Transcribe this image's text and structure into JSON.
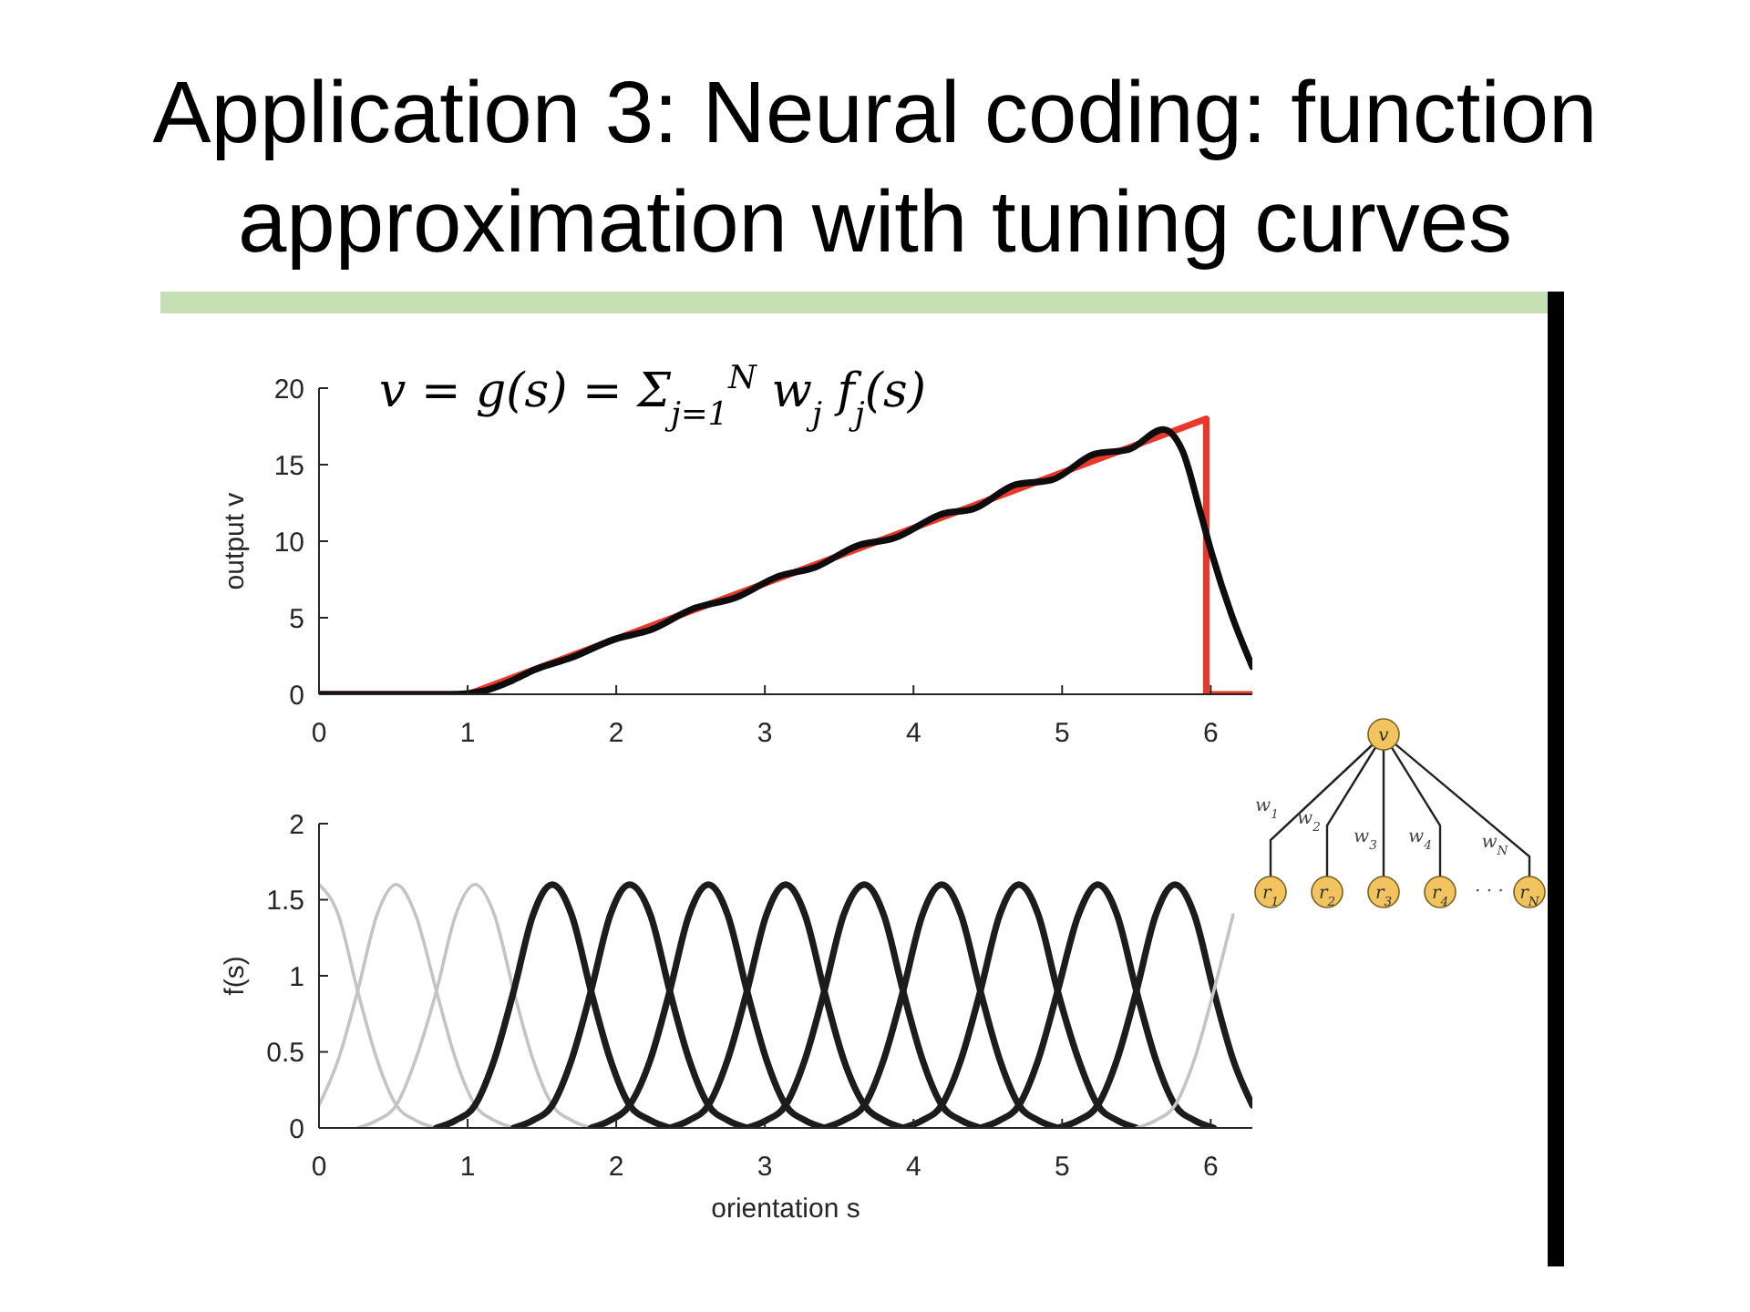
{
  "chart_data": [
    {
      "type": "line",
      "title": "Application 3: Neural coding: function approximation with tuning curves",
      "ylabel": "output v",
      "annotations": [
        "v = g(s) = Σ$_{j=1}$$^{N}$ w$_{j}$ f$_{j}$(s)"
      ],
      "xlim": [
        0,
        6.28
      ],
      "ylim": [
        0,
        20
      ],
      "xticks": [
        0,
        1,
        2,
        3,
        4,
        5,
        6
      ],
      "yticks": [
        0,
        5,
        10,
        15,
        20
      ],
      "series": [
        {
          "color": "#e8392a",
          "x": [
            0,
            1,
            5.97,
            5.97,
            6.28
          ],
          "values": [
            0,
            0,
            18,
            0,
            0
          ]
        },
        {
          "color": "#0d0d0d",
          "x": [
            0,
            0.5,
            0.9,
            1.1,
            1.3,
            1.45,
            1.7,
            1.99,
            2.23,
            2.52,
            2.8,
            3.09,
            3.34,
            3.62,
            3.87,
            4.2,
            4.4,
            4.69,
            4.93,
            5.22,
            5.45,
            5.68,
            5.81,
            5.93,
            6.01,
            6.14,
            6.28
          ],
          "values": [
            0,
            0,
            0,
            0.2,
            0.9,
            1.6,
            2.4,
            3.6,
            4.2,
            5.6,
            6.3,
            7.7,
            8.3,
            9.7,
            10.2,
            11.8,
            12.1,
            13.7,
            14.0,
            15.7,
            16.0,
            17.3,
            15.9,
            11.9,
            9.1,
            5.2,
            1.8
          ]
        }
      ]
    },
    {
      "type": "line",
      "xlabel": "orientation s",
      "ylabel": "f(s)",
      "annotations": [
        "v",
        "w$_{1}$",
        "w$_{2}$",
        "w$_{3}$",
        "w$_{4}$",
        "w$_{N}$",
        "r$_{1}$",
        "r$_{2}$",
        "r$_{3}$",
        "r$_{4}$",
        "· · ·",
        "r$_{N}$"
      ],
      "xlim": [
        0,
        6.28
      ],
      "ylim": [
        0,
        2
      ],
      "xticks": [
        0,
        1,
        2,
        3,
        4,
        5,
        6
      ],
      "yticks": [
        0,
        0.5,
        1,
        1.5,
        2
      ],
      "series": [
        {
          "color": "#c4c4c4",
          "x": [
            0,
            0.13,
            0.26,
            0.39,
            0.52,
            0.65,
            0.79
          ],
          "values": [
            1.6,
            1.4,
            0.9,
            0.45,
            0.15,
            0.05,
            0
          ]
        },
        {
          "color": "#c4c4c4",
          "x": [
            0,
            0.13,
            0.26,
            0.39,
            0.52,
            0.65,
            0.79,
            0.92,
            1.05,
            1.18,
            1.31
          ],
          "values": [
            0.15,
            0.45,
            0.9,
            1.4,
            1.6,
            1.4,
            0.9,
            0.45,
            0.15,
            0.05,
            0
          ]
        },
        {
          "color": "#c4c4c4",
          "x": [
            0.26,
            0.39,
            0.52,
            0.65,
            0.79,
            0.92,
            1.05,
            1.18,
            1.31,
            1.44,
            1.57,
            1.7,
            1.83
          ],
          "values": [
            0,
            0.05,
            0.15,
            0.45,
            0.9,
            1.4,
            1.6,
            1.4,
            0.9,
            0.45,
            0.15,
            0.05,
            0
          ]
        },
        {
          "color": "#1c1c1c",
          "x": [
            0.79,
            0.92,
            1.05,
            1.18,
            1.31,
            1.44,
            1.57,
            1.7,
            1.83,
            1.96,
            2.09,
            2.23,
            2.36
          ],
          "values": [
            0,
            0.05,
            0.15,
            0.45,
            0.9,
            1.4,
            1.6,
            1.4,
            0.9,
            0.45,
            0.15,
            0.05,
            0
          ]
        },
        {
          "color": "#1c1c1c",
          "x": [
            1.31,
            1.44,
            1.57,
            1.7,
            1.83,
            1.96,
            2.09,
            2.23,
            2.36,
            2.49,
            2.62,
            2.75,
            2.88
          ],
          "values": [
            0,
            0.05,
            0.15,
            0.45,
            0.9,
            1.4,
            1.6,
            1.4,
            0.9,
            0.45,
            0.15,
            0.05,
            0
          ]
        },
        {
          "color": "#1c1c1c",
          "x": [
            1.83,
            1.96,
            2.09,
            2.23,
            2.36,
            2.49,
            2.62,
            2.75,
            2.88,
            3.01,
            3.14,
            3.27,
            3.4
          ],
          "values": [
            0,
            0.05,
            0.15,
            0.45,
            0.9,
            1.4,
            1.6,
            1.4,
            0.9,
            0.45,
            0.15,
            0.05,
            0
          ]
        },
        {
          "color": "#1c1c1c",
          "x": [
            2.36,
            2.49,
            2.62,
            2.75,
            2.88,
            3.01,
            3.14,
            3.27,
            3.4,
            3.53,
            3.67,
            3.8,
            3.93
          ],
          "values": [
            0,
            0.05,
            0.15,
            0.45,
            0.9,
            1.4,
            1.6,
            1.4,
            0.9,
            0.45,
            0.15,
            0.05,
            0
          ]
        },
        {
          "color": "#1c1c1c",
          "x": [
            2.88,
            3.01,
            3.14,
            3.27,
            3.4,
            3.53,
            3.67,
            3.8,
            3.93,
            4.06,
            4.19,
            4.32,
            4.45
          ],
          "values": [
            0,
            0.05,
            0.15,
            0.45,
            0.9,
            1.4,
            1.6,
            1.4,
            0.9,
            0.45,
            0.15,
            0.05,
            0
          ]
        },
        {
          "color": "#1c1c1c",
          "x": [
            3.4,
            3.53,
            3.67,
            3.8,
            3.93,
            4.06,
            4.19,
            4.32,
            4.45,
            4.58,
            4.71,
            4.84,
            4.97
          ],
          "values": [
            0,
            0.05,
            0.15,
            0.45,
            0.9,
            1.4,
            1.6,
            1.4,
            0.9,
            0.45,
            0.15,
            0.05,
            0
          ]
        },
        {
          "color": "#1c1c1c",
          "x": [
            3.93,
            4.06,
            4.19,
            4.32,
            4.45,
            4.58,
            4.71,
            4.84,
            4.97,
            5.11,
            5.24,
            5.37,
            5.5
          ],
          "values": [
            0,
            0.05,
            0.15,
            0.45,
            0.9,
            1.4,
            1.6,
            1.4,
            0.9,
            0.45,
            0.15,
            0.05,
            0
          ]
        },
        {
          "color": "#1c1c1c",
          "x": [
            4.45,
            4.58,
            4.71,
            4.84,
            4.97,
            5.11,
            5.24,
            5.37,
            5.5,
            5.63,
            5.76,
            5.89,
            6.02
          ],
          "values": [
            0,
            0.05,
            0.15,
            0.45,
            0.9,
            1.4,
            1.6,
            1.4,
            0.9,
            0.45,
            0.15,
            0.05,
            0
          ]
        },
        {
          "color": "#1c1c1c",
          "x": [
            4.97,
            5.11,
            5.24,
            5.37,
            5.5,
            5.63,
            5.76,
            5.89,
            6.02,
            6.15,
            6.28
          ],
          "values": [
            0,
            0.05,
            0.15,
            0.45,
            0.9,
            1.4,
            1.6,
            1.4,
            0.9,
            0.45,
            0.15
          ]
        },
        {
          "color": "#c4c4c4",
          "x": [
            5.5,
            5.63,
            5.76,
            5.89,
            6.02,
            6.15
          ],
          "values": [
            0,
            0.05,
            0.15,
            0.45,
            0.9,
            1.4
          ]
        }
      ]
    }
  ]
}
